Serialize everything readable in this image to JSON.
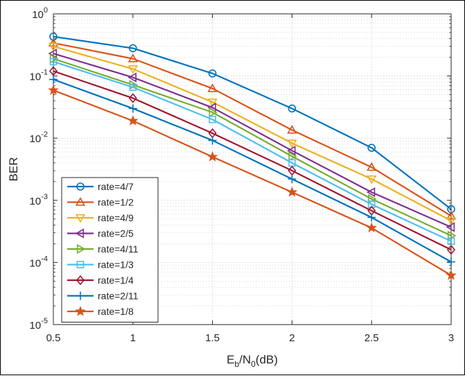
{
  "chart_data": {
    "type": "line",
    "xlabel": {
      "main": "E",
      "sub1": "b",
      "mid": "/N",
      "sub2": "0",
      "tail": "(dB)"
    },
    "ylabel": "BER",
    "yscale": "log",
    "xlim": [
      0.5,
      3
    ],
    "ylim": [
      1e-05,
      1
    ],
    "x_ticks": [
      {
        "value": 0.5,
        "label": "0.5"
      },
      {
        "value": 1,
        "label": "1"
      },
      {
        "value": 1.5,
        "label": "1.5"
      },
      {
        "value": 2,
        "label": "2"
      },
      {
        "value": 2.5,
        "label": "2.5"
      },
      {
        "value": 3,
        "label": "3"
      }
    ],
    "y_ticks": [
      {
        "value": 1,
        "base": "10",
        "exp": "0"
      },
      {
        "value": 0.1,
        "base": "10",
        "exp": "-1"
      },
      {
        "value": 0.01,
        "base": "10",
        "exp": "-2"
      },
      {
        "value": 0.001,
        "base": "10",
        "exp": "-3"
      },
      {
        "value": 0.0001,
        "base": "10",
        "exp": "-4"
      },
      {
        "value": 1e-05,
        "base": "10",
        "exp": "-5"
      }
    ],
    "grid": true,
    "legend_position": "bottom-left",
    "x": [
      0.5,
      1,
      1.5,
      2,
      2.5,
      3
    ],
    "series": [
      {
        "name": "rate=4/7",
        "color": "#0072BD",
        "marker": "circle",
        "values": [
          0.43,
          0.28,
          0.11,
          0.03,
          0.007,
          0.00072
        ]
      },
      {
        "name": "rate=1/2",
        "color": "#D95319",
        "marker": "triangle-up",
        "values": [
          0.34,
          0.19,
          0.063,
          0.0135,
          0.0034,
          0.00056
        ]
      },
      {
        "name": "rate=4/9",
        "color": "#EDB120",
        "marker": "triangle-down",
        "values": [
          0.3,
          0.13,
          0.038,
          0.0083,
          0.0022,
          0.00047
        ]
      },
      {
        "name": "rate=2/5",
        "color": "#7E2F8E",
        "marker": "triangle-left",
        "values": [
          0.23,
          0.095,
          0.031,
          0.0063,
          0.00135,
          0.00037
        ]
      },
      {
        "name": "rate=4/11",
        "color": "#77AC30",
        "marker": "triangle-right",
        "values": [
          0.19,
          0.072,
          0.026,
          0.0051,
          0.00105,
          0.00027
        ]
      },
      {
        "name": "rate=1/3",
        "color": "#4DBEEE",
        "marker": "square",
        "values": [
          0.17,
          0.066,
          0.02,
          0.004,
          0.00086,
          0.00022
        ]
      },
      {
        "name": "rate=1/4",
        "color": "#A2142F",
        "marker": "diamond",
        "values": [
          0.12,
          0.044,
          0.012,
          0.003,
          0.00068,
          0.00016
        ]
      },
      {
        "name": "rate=2/11",
        "color": "#0072BD",
        "marker": "plus",
        "values": [
          0.088,
          0.03,
          0.0092,
          0.0022,
          0.00053,
          0.000102
        ]
      },
      {
        "name": "rate=1/8",
        "color": "#D95319",
        "marker": "star",
        "values": [
          0.059,
          0.019,
          0.005,
          0.00135,
          0.00036,
          6.2e-05
        ]
      }
    ]
  }
}
